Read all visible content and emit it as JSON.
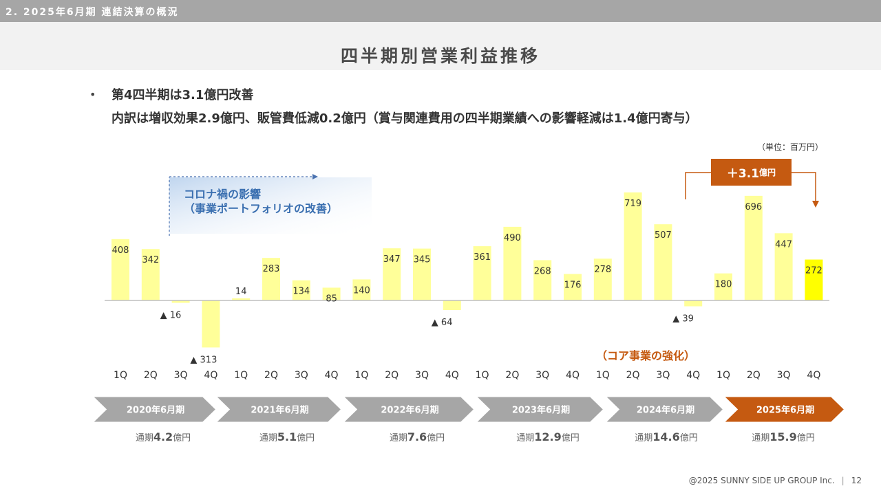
{
  "header": {
    "section": "2. 2025年6月期 連結決算の概況",
    "title": "四半期別営業利益推移"
  },
  "summary": {
    "line1": "第4四半期は3.1億円改善",
    "line2": "内訳は増収効果2.9億円、販管費低減0.2億円（賞与関連費用の四半期業績への影響軽減は1.4億円寄与）"
  },
  "unit": "（単位：百万円）",
  "annotations": {
    "covid_line1": "コロナ禍の影響",
    "covid_line2": "（事業ポートフォリオの改善）",
    "core": "（コア事業の強化）",
    "increase_main": "＋3.1",
    "increase_unit": "億円"
  },
  "chart_data": {
    "type": "bar",
    "categories": [
      "1Q",
      "2Q",
      "3Q",
      "4Q",
      "1Q",
      "2Q",
      "3Q",
      "4Q",
      "1Q",
      "2Q",
      "3Q",
      "4Q",
      "1Q",
      "2Q",
      "3Q",
      "4Q",
      "1Q",
      "2Q",
      "3Q",
      "4Q",
      "1Q",
      "2Q",
      "3Q",
      "4Q"
    ],
    "values": [
      408,
      342,
      -16,
      -313,
      14,
      283,
      134,
      85,
      140,
      347,
      345,
      -64,
      361,
      490,
      268,
      176,
      278,
      719,
      507,
      -39,
      180,
      696,
      447,
      272
    ],
    "value_labels": [
      "408",
      "342",
      "▲ 16",
      "▲ 313",
      "14",
      "283",
      "134",
      "85",
      "140",
      "347",
      "345",
      "▲ 64",
      "361",
      "490",
      "268",
      "176",
      "278",
      "719",
      "507",
      "▲ 39",
      "180",
      "696",
      "447",
      "272"
    ],
    "ylim": [
      -330,
      730
    ],
    "bar_color": "#ffff99",
    "highlight_color": "#ffff00",
    "highlight_index": 23,
    "fiscal_years": [
      {
        "label": "2020年6月期",
        "total_prefix": "通期",
        "total_value": "4.2",
        "total_unit": "億円",
        "current": false
      },
      {
        "label": "2021年6月期",
        "total_prefix": "通期",
        "total_value": "5.1",
        "total_unit": "億円",
        "current": false
      },
      {
        "label": "2022年6月期",
        "total_prefix": "通期",
        "total_value": "7.6",
        "total_unit": "億円",
        "current": false
      },
      {
        "label": "2023年6月期",
        "total_prefix": "通期",
        "total_value": "12.9",
        "total_unit": "億円",
        "current": false
      },
      {
        "label": "2024年6月期",
        "total_prefix": "通期",
        "total_value": "14.6",
        "total_unit": "億円",
        "current": false
      },
      {
        "label": "2025年6月期",
        "total_prefix": "通期",
        "total_value": "15.9",
        "total_unit": "億円",
        "current": true
      }
    ],
    "colors": {
      "year_arrow": "#a6a6a6",
      "year_arrow_current": "#c55a11"
    }
  },
  "footer": {
    "copyright": "@2025 SUNNY SIDE UP GROUP Inc.",
    "page": "12"
  }
}
